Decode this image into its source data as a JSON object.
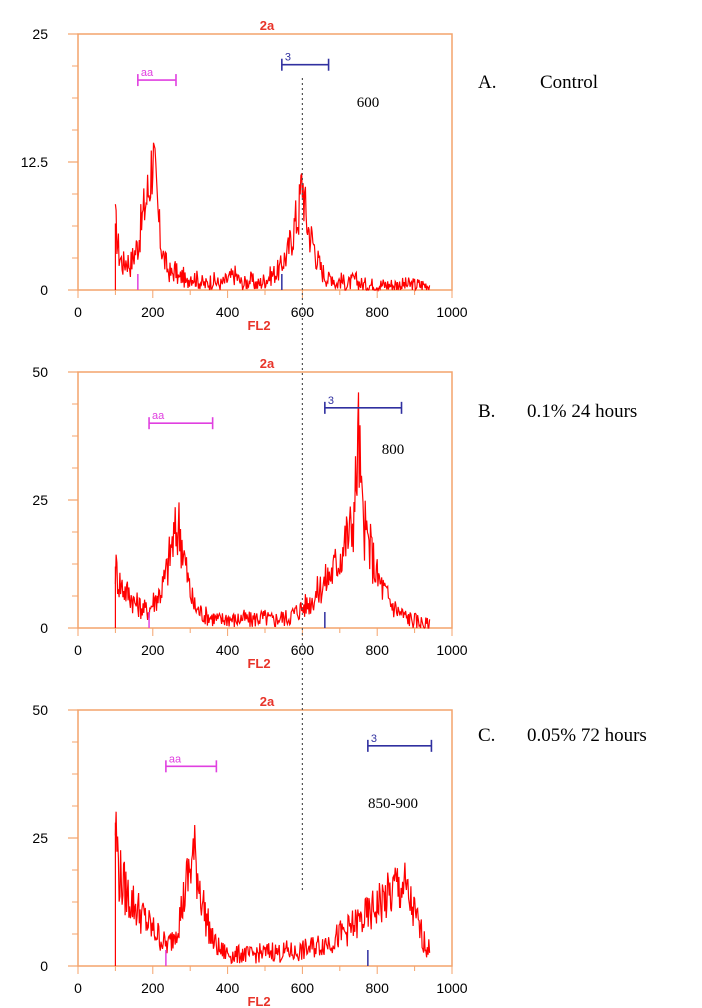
{
  "colors": {
    "frame": "#f4a36b",
    "trace": "#ff0000",
    "gate_aa": "#e040e0",
    "gate_3": "#3030a0",
    "dotted_line": "#555555",
    "top_label": "#e8342a"
  },
  "dotted_line_x": 600,
  "chart_data": [
    {
      "type": "line",
      "panel_letter": "A.",
      "side_label": "Control",
      "note": "600",
      "title": "2a",
      "xlabel": "FL2",
      "xlim": [
        0,
        1000
      ],
      "ylim": [
        0,
        25
      ],
      "x_ticks": [
        "0",
        "200",
        "400",
        "600",
        "800",
        "1000"
      ],
      "y_ticks": [
        "0",
        "12.5",
        "25"
      ],
      "y_tick_values": [
        0,
        12.5,
        25
      ],
      "grid": false,
      "gates": [
        {
          "name": "aa",
          "x": [
            160,
            262
          ],
          "y": 20.5
        },
        {
          "name": "3",
          "x": [
            545,
            670
          ],
          "y": 22.0
        }
      ],
      "series": [
        {
          "x": [
            100,
            110,
            120,
            130,
            140,
            150,
            160,
            170,
            180,
            190,
            200,
            210,
            220,
            230,
            240,
            250,
            260,
            270,
            280,
            290,
            300,
            320,
            340,
            360,
            380,
            400,
            420,
            440,
            460,
            480,
            500,
            520,
            540,
            550,
            560,
            570,
            580,
            590,
            600,
            610,
            620,
            630,
            640,
            650,
            660,
            670,
            680,
            690,
            700,
            720,
            740,
            760,
            780,
            800,
            820,
            840,
            860,
            880,
            900,
            920,
            940
          ],
          "y": [
            6.5,
            3.5,
            2.5,
            3.0,
            2.5,
            3.5,
            4.5,
            6.5,
            8.5,
            10.0,
            13.5,
            9.0,
            5.0,
            3.0,
            2.0,
            1.5,
            2.0,
            1.0,
            1.5,
            0.5,
            1.5,
            1.0,
            0.5,
            1.0,
            0.5,
            1.0,
            1.5,
            0.5,
            1.0,
            0.5,
            1.0,
            1.5,
            2.0,
            3.0,
            3.5,
            5.0,
            6.5,
            7.5,
            11.0,
            7.0,
            5.5,
            4.5,
            3.0,
            2.0,
            1.5,
            1.0,
            1.5,
            0.5,
            1.0,
            0.5,
            1.0,
            0.5,
            0.5,
            0.5,
            0.5,
            0.5,
            0.5,
            0.5,
            0.5,
            0.5,
            0.5
          ]
        }
      ]
    },
    {
      "type": "line",
      "panel_letter": "B.",
      "side_label": "0.1% 24 hours",
      "note": "800",
      "title": "2a",
      "xlabel": "FL2",
      "xlim": [
        0,
        1000
      ],
      "ylim": [
        0,
        50
      ],
      "x_ticks": [
        "0",
        "200",
        "400",
        "600",
        "800",
        "1000"
      ],
      "y_ticks": [
        "0",
        "25",
        "50"
      ],
      "y_tick_values": [
        0,
        25,
        50
      ],
      "grid": false,
      "gates": [
        {
          "name": "aa",
          "x": [
            190,
            360
          ],
          "y": 40
        },
        {
          "name": "3",
          "x": [
            660,
            865
          ],
          "y": 43
        }
      ],
      "series": [
        {
          "x": [
            100,
            110,
            120,
            130,
            140,
            150,
            160,
            170,
            180,
            190,
            200,
            210,
            220,
            230,
            240,
            250,
            260,
            270,
            280,
            290,
            300,
            310,
            320,
            340,
            360,
            380,
            400,
            420,
            440,
            460,
            480,
            500,
            520,
            540,
            560,
            580,
            600,
            620,
            640,
            660,
            680,
            700,
            710,
            720,
            730,
            740,
            750,
            760,
            770,
            780,
            790,
            800,
            820,
            840,
            860,
            880,
            900,
            920,
            940
          ],
          "y": [
            12,
            9,
            8,
            7,
            6.5,
            5,
            4.5,
            4,
            3.5,
            3.5,
            5,
            6,
            7,
            9,
            12,
            16,
            18,
            20,
            16,
            11,
            7,
            4.5,
            3.5,
            2.5,
            2,
            1.5,
            2,
            1.5,
            2,
            1.5,
            2,
            2,
            1.5,
            2,
            2,
            3,
            4,
            5,
            7,
            9,
            11,
            14,
            16,
            18,
            19,
            24,
            38,
            22,
            18,
            16,
            13,
            10,
            7,
            4.5,
            3,
            2,
            1.5,
            1,
            0.5
          ]
        }
      ]
    },
    {
      "type": "line",
      "panel_letter": "C.",
      "side_label": "0.05% 72 hours",
      "note": "850-900",
      "title": "2a",
      "xlabel": "FL2",
      "xlim": [
        0,
        1000
      ],
      "ylim": [
        0,
        50
      ],
      "x_ticks": [
        "0",
        "200",
        "400",
        "600",
        "800",
        "1000"
      ],
      "y_ticks": [
        "0",
        "25",
        "50"
      ],
      "y_tick_values": [
        0,
        25,
        50
      ],
      "grid": false,
      "gates": [
        {
          "name": "aa",
          "x": [
            235,
            370
          ],
          "y": 39
        },
        {
          "name": "3",
          "x": [
            775,
            945
          ],
          "y": 43
        }
      ],
      "series": [
        {
          "x": [
            100,
            110,
            120,
            130,
            140,
            150,
            160,
            170,
            180,
            190,
            200,
            210,
            220,
            230,
            240,
            250,
            260,
            270,
            280,
            290,
            300,
            310,
            320,
            330,
            340,
            360,
            380,
            400,
            420,
            440,
            460,
            480,
            500,
            520,
            540,
            560,
            580,
            600,
            620,
            640,
            660,
            680,
            700,
            720,
            740,
            760,
            780,
            800,
            820,
            840,
            850,
            860,
            870,
            880,
            890,
            900,
            910,
            920,
            930,
            940
          ],
          "y": [
            28,
            18,
            16,
            14,
            13,
            12,
            11,
            10,
            9,
            8,
            7,
            6.5,
            5.5,
            4.5,
            4,
            5,
            7,
            9,
            12,
            16,
            19,
            22,
            18,
            14,
            10,
            5,
            3,
            2.5,
            2,
            2.5,
            2,
            2.5,
            2.5,
            3,
            2.5,
            3,
            2.5,
            3,
            3.5,
            4,
            4.5,
            5,
            6,
            7,
            8,
            9,
            10,
            12,
            13,
            14,
            16,
            15,
            16,
            14,
            12,
            10,
            8,
            6,
            4,
            3
          ]
        }
      ]
    }
  ]
}
